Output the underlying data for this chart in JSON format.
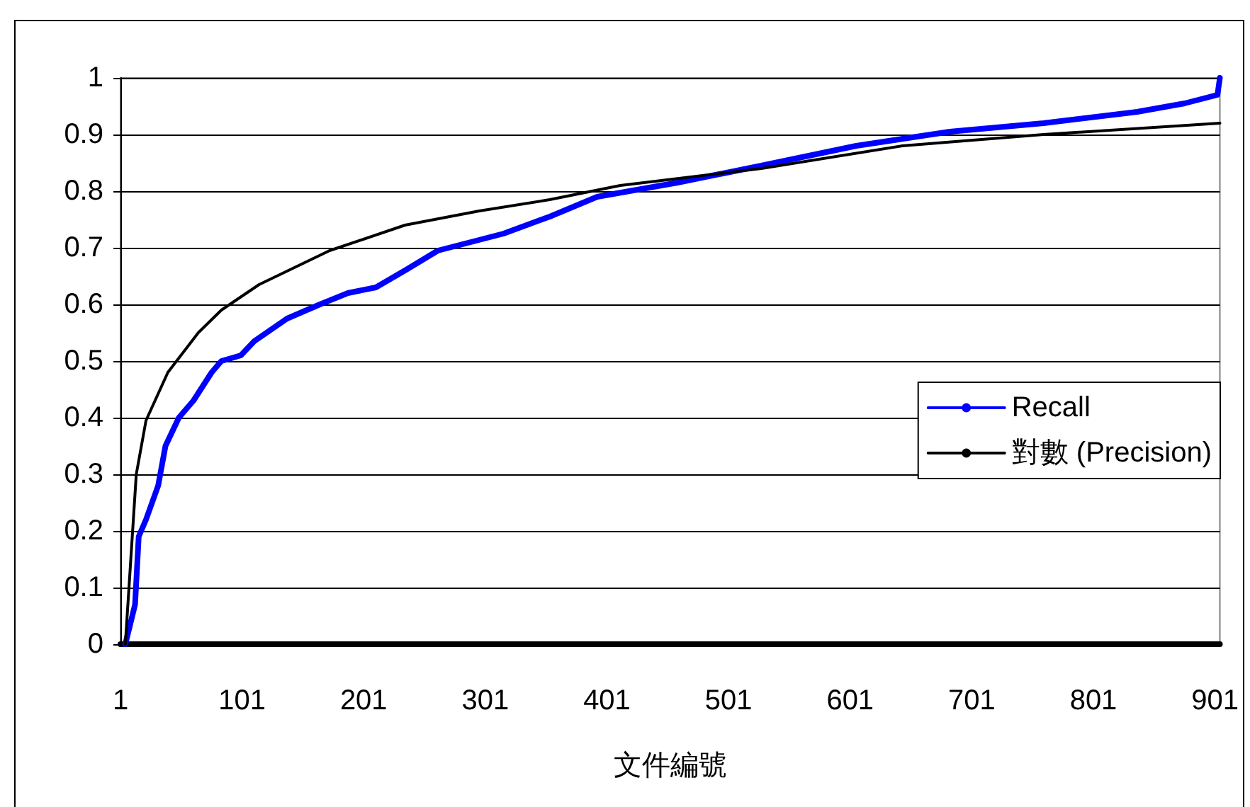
{
  "chart_data": {
    "type": "line",
    "xlabel": "文件編號",
    "xlim": [
      1,
      905
    ],
    "xticks": [
      1,
      101,
      201,
      301,
      401,
      501,
      601,
      701,
      801,
      901
    ],
    "ylim": [
      0,
      1
    ],
    "yticks": [
      0,
      0.1,
      0.2,
      0.3,
      0.4,
      0.5,
      0.6,
      0.7,
      0.8,
      0.9,
      1
    ],
    "grid": "y",
    "legend": "right",
    "marker": "none",
    "line_style": "solid",
    "series": [
      {
        "name": "Recall",
        "color": "#0000ff",
        "x": [
          5,
          13,
          16,
          22,
          32,
          38,
          49,
          61,
          76,
          84,
          100,
          111,
          138,
          165,
          188,
          211,
          235,
          262,
          289,
          316,
          354,
          393,
          459,
          528,
          606,
          683,
          760,
          837,
          876,
          903,
          905
        ],
        "values": [
          0,
          0.07,
          0.19,
          0.22,
          0.28,
          0.35,
          0.4,
          0.43,
          0.48,
          0.5,
          0.51,
          0.535,
          0.575,
          0.6,
          0.62,
          0.63,
          0.66,
          0.695,
          0.71,
          0.725,
          0.755,
          0.79,
          0.815,
          0.845,
          0.88,
          0.905,
          0.92,
          0.94,
          0.955,
          0.97,
          1
        ]
      },
      {
        "name": "對數 (Precision)",
        "color": "#000000",
        "x": [
          5,
          14,
          22,
          40,
          65,
          84,
          115,
          173,
          235,
          296,
          354,
          412,
          528,
          644,
          760,
          905
        ],
        "values": [
          0,
          0.3,
          0.395,
          0.48,
          0.55,
          0.59,
          0.635,
          0.695,
          0.74,
          0.765,
          0.785,
          0.81,
          0.84,
          0.88,
          0.9,
          0.92
        ]
      }
    ]
  }
}
